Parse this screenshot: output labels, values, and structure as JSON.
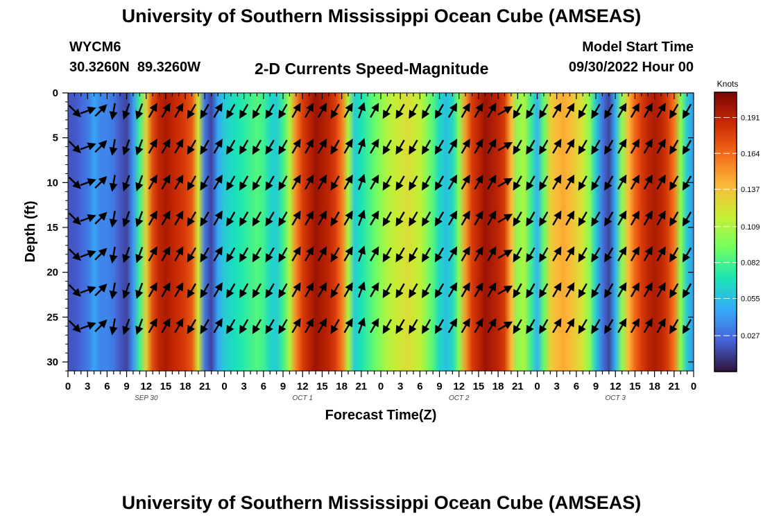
{
  "page_title": "University of Southern Mississippi Ocean Cube (AMSEAS)",
  "footer_title": "University of Southern Mississippi Ocean Cube (AMSEAS)",
  "station": {
    "id": "WYCM6",
    "coords": "30.3260N  89.3260W"
  },
  "model_start": {
    "label": "Model Start Time",
    "value": "09/30/2022 Hour 00"
  },
  "chart_data": {
    "type": "heatmap",
    "title": "2-D Currents Speed-Magnitude",
    "xlabel": "Forecast Time(Z)",
    "ylabel": "Depth (ft)",
    "x_range_hours": [
      0,
      96
    ],
    "ylim": [
      0,
      31
    ],
    "x_ticks": [
      {
        "hour": 0,
        "label": "0"
      },
      {
        "hour": 3,
        "label": "3"
      },
      {
        "hour": 6,
        "label": "6"
      },
      {
        "hour": 9,
        "label": "9"
      },
      {
        "hour": 12,
        "label": "12"
      },
      {
        "hour": 15,
        "label": "15"
      },
      {
        "hour": 18,
        "label": "18"
      },
      {
        "hour": 21,
        "label": "21"
      },
      {
        "hour": 24,
        "label": "0"
      },
      {
        "hour": 27,
        "label": "3"
      },
      {
        "hour": 30,
        "label": "6"
      },
      {
        "hour": 33,
        "label": "9"
      },
      {
        "hour": 36,
        "label": "12"
      },
      {
        "hour": 39,
        "label": "15"
      },
      {
        "hour": 42,
        "label": "18"
      },
      {
        "hour": 45,
        "label": "21"
      },
      {
        "hour": 48,
        "label": "0"
      },
      {
        "hour": 51,
        "label": "3"
      },
      {
        "hour": 54,
        "label": "6"
      },
      {
        "hour": 57,
        "label": "9"
      },
      {
        "hour": 60,
        "label": "12"
      },
      {
        "hour": 63,
        "label": "15"
      },
      {
        "hour": 66,
        "label": "18"
      },
      {
        "hour": 69,
        "label": "21"
      },
      {
        "hour": 72,
        "label": "0"
      },
      {
        "hour": 75,
        "label": "3"
      },
      {
        "hour": 78,
        "label": "6"
      },
      {
        "hour": 81,
        "label": "9"
      },
      {
        "hour": 84,
        "label": "12"
      },
      {
        "hour": 87,
        "label": "15"
      },
      {
        "hour": 90,
        "label": "18"
      },
      {
        "hour": 93,
        "label": "21"
      },
      {
        "hour": 96,
        "label": "0"
      }
    ],
    "y_ticks": [
      0,
      5,
      10,
      15,
      20,
      25,
      30
    ],
    "date_labels": [
      {
        "hour": 12,
        "label": "SEP 30"
      },
      {
        "hour": 36,
        "label": "OCT 1"
      },
      {
        "hour": 60,
        "label": "OCT 2"
      },
      {
        "hour": 84,
        "label": "OCT 3"
      }
    ],
    "speed_by_hour_knots": [
      0.02,
      0.02,
      0.025,
      0.03,
      0.045,
      0.035,
      0.035,
      0.03,
      0.02,
      0.015,
      0.04,
      0.08,
      0.13,
      0.175,
      0.19,
      0.195,
      0.19,
      0.185,
      0.18,
      0.17,
      0.12,
      0.03,
      0.015,
      0.045,
      0.06,
      0.065,
      0.07,
      0.075,
      0.08,
      0.085,
      0.08,
      0.065,
      0.06,
      0.08,
      0.11,
      0.155,
      0.18,
      0.19,
      0.2,
      0.195,
      0.19,
      0.18,
      0.16,
      0.11,
      0.06,
      0.07,
      0.08,
      0.09,
      0.1,
      0.11,
      0.115,
      0.12,
      0.125,
      0.12,
      0.115,
      0.1,
      0.085,
      0.065,
      0.055,
      0.065,
      0.1,
      0.15,
      0.18,
      0.19,
      0.2,
      0.195,
      0.19,
      0.18,
      0.14,
      0.1,
      0.11,
      0.08,
      0.05,
      0.09,
      0.13,
      0.14,
      0.145,
      0.14,
      0.13,
      0.12,
      0.1,
      0.06,
      0.03,
      0.015,
      0.05,
      0.1,
      0.14,
      0.165,
      0.18,
      0.19,
      0.195,
      0.19,
      0.18,
      0.16,
      0.1,
      0.06,
      0.04
    ],
    "direction_deg_by_hour": [
      135,
      75,
      70,
      45,
      45,
      45,
      190,
      195,
      200,
      200,
      200,
      30,
      30,
      30,
      30,
      30,
      30,
      210,
      210,
      210,
      210,
      30,
      30,
      30,
      210,
      210,
      210,
      210,
      210,
      210,
      210,
      210,
      210,
      30,
      30,
      30,
      30,
      30,
      30,
      210,
      210,
      210,
      30,
      20,
      20,
      20,
      30,
      30,
      210,
      210,
      210,
      210,
      210,
      210,
      210,
      210,
      210,
      30,
      30,
      30,
      30,
      30,
      30,
      30,
      30,
      210,
      60,
      70,
      210,
      210,
      210,
      210,
      210,
      30,
      30,
      30,
      30,
      30,
      210,
      210,
      210,
      210,
      210,
      210,
      30,
      30,
      30,
      30,
      30,
      30,
      30,
      30,
      210,
      210,
      210,
      210,
      30
    ],
    "legend": {
      "title": "Knots",
      "min": 0.0,
      "max": 0.21,
      "ticks": [
        0.027,
        0.055,
        0.082,
        0.109,
        0.137,
        0.164,
        0.191
      ],
      "tick_labels": [
        "0.027",
        "0.055",
        "0.082",
        "0.109",
        "0.137",
        "0.164",
        "0.191"
      ],
      "placement": "right",
      "colormap": [
        "#30123b",
        "#4662d8",
        "#36aaf9",
        "#1ae4b6",
        "#72fe5e",
        "#c8ef34",
        "#faba39",
        "#f66b19",
        "#ca2a04",
        "#7a0403"
      ]
    }
  }
}
